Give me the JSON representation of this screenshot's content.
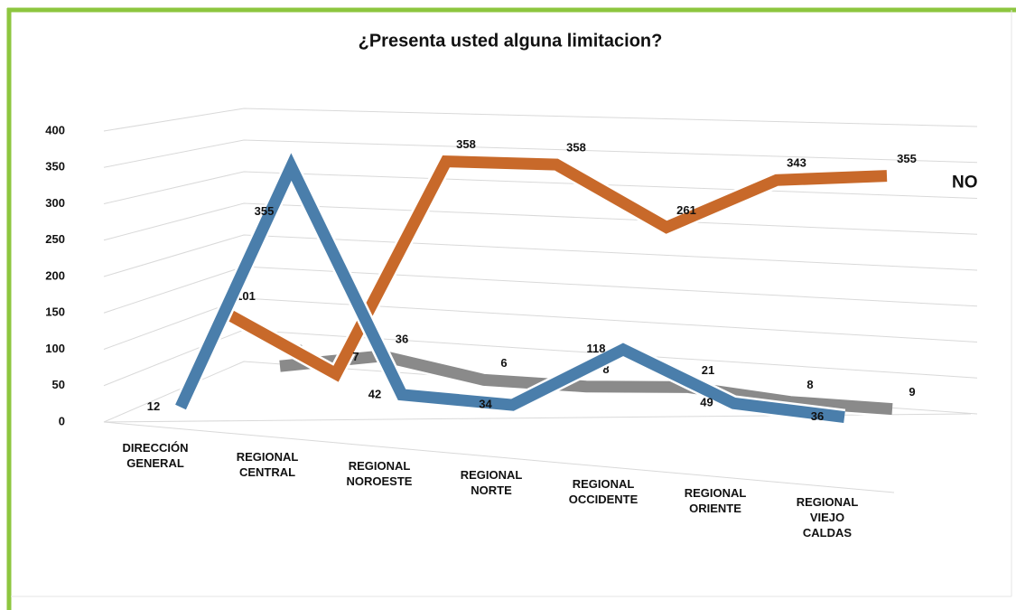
{
  "chart_data": {
    "type": "line3d",
    "title": "¿Presenta usted alguna limitacion?",
    "categories": [
      "DIRECCIÓN GENERAL",
      "REGIONAL CENTRAL",
      "REGIONAL NOROESTE",
      "REGIONAL NORTE",
      "REGIONAL OCCIDENTE",
      "REGIONAL ORIENTE",
      "REGIONAL VIEJO CALDAS"
    ],
    "series": [
      {
        "color": "#4a7eab",
        "values": [
          12,
          355,
          42,
          34,
          118,
          49,
          36
        ]
      },
      {
        "name": "NO",
        "color": "#c8692a",
        "values": [
          101,
          7,
          358,
          358,
          261,
          343,
          355
        ]
      },
      {
        "color": "#8a8a8a",
        "values": [
          3,
          36,
          6,
          8,
          21,
          8,
          9
        ]
      }
    ],
    "ylim": [
      0,
      400
    ],
    "yticks": [
      0,
      50,
      100,
      150,
      200,
      250,
      300,
      350,
      400
    ],
    "grid": true
  }
}
